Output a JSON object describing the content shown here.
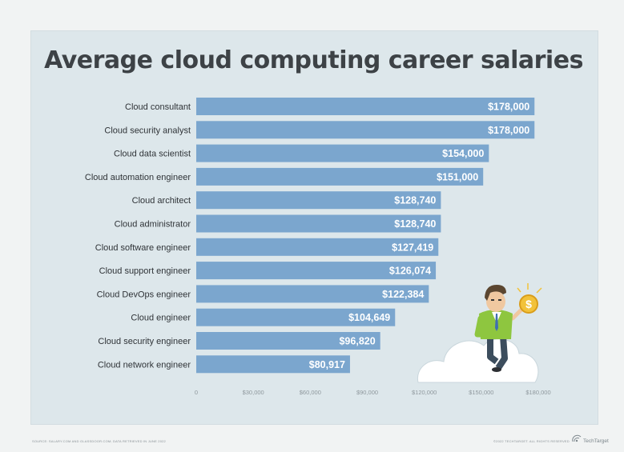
{
  "title": "Average cloud computing career salaries",
  "chart_data": {
    "type": "bar",
    "orientation": "horizontal",
    "title": "Average cloud computing career salaries",
    "categories": [
      "Cloud consultant",
      "Cloud security analyst",
      "Cloud data scientist",
      "Cloud automation engineer",
      "Cloud architect",
      "Cloud administrator",
      "Cloud software engineer",
      "Cloud support engineer",
      "Cloud DevOps engineer",
      "Cloud engineer",
      "Cloud security engineer",
      "Cloud network engineer"
    ],
    "values": [
      178000,
      178000,
      154000,
      151000,
      128740,
      128740,
      127419,
      126074,
      122384,
      104649,
      96820,
      80917
    ],
    "value_labels": [
      "$178,000",
      "$178,000",
      "$154,000",
      "$151,000",
      "$128,740",
      "$128,740",
      "$127,419",
      "$126,074",
      "$122,384",
      "$104,649",
      "$96,820",
      "$80,917"
    ],
    "x_ticks": [
      0,
      30000,
      60000,
      90000,
      120000,
      150000,
      180000
    ],
    "x_tick_labels": [
      "0",
      "$30,000",
      "$60,000",
      "$90,000",
      "$120,000",
      "$150,000",
      "$180,000"
    ],
    "xlim": [
      0,
      180000
    ],
    "xlabel": "",
    "ylabel": "",
    "grid": false,
    "bar_color": "#7ba6ce",
    "value_label_color": "#ffffff"
  },
  "footer": {
    "source": "SOURCE: SALARY.COM AND GLASSDOOR.COM; DATA RETRIEVED IN JUNE 2022",
    "copyright": "©2022 TECHTARGET. ALL RIGHTS RESERVED",
    "brand": "TechTarget",
    "brand_icon": "techtarget-logo"
  },
  "illustration": {
    "icon": "businessman-on-cloud-holding-coin",
    "coin_symbol": "$",
    "coin_color": "#f2c23a"
  }
}
